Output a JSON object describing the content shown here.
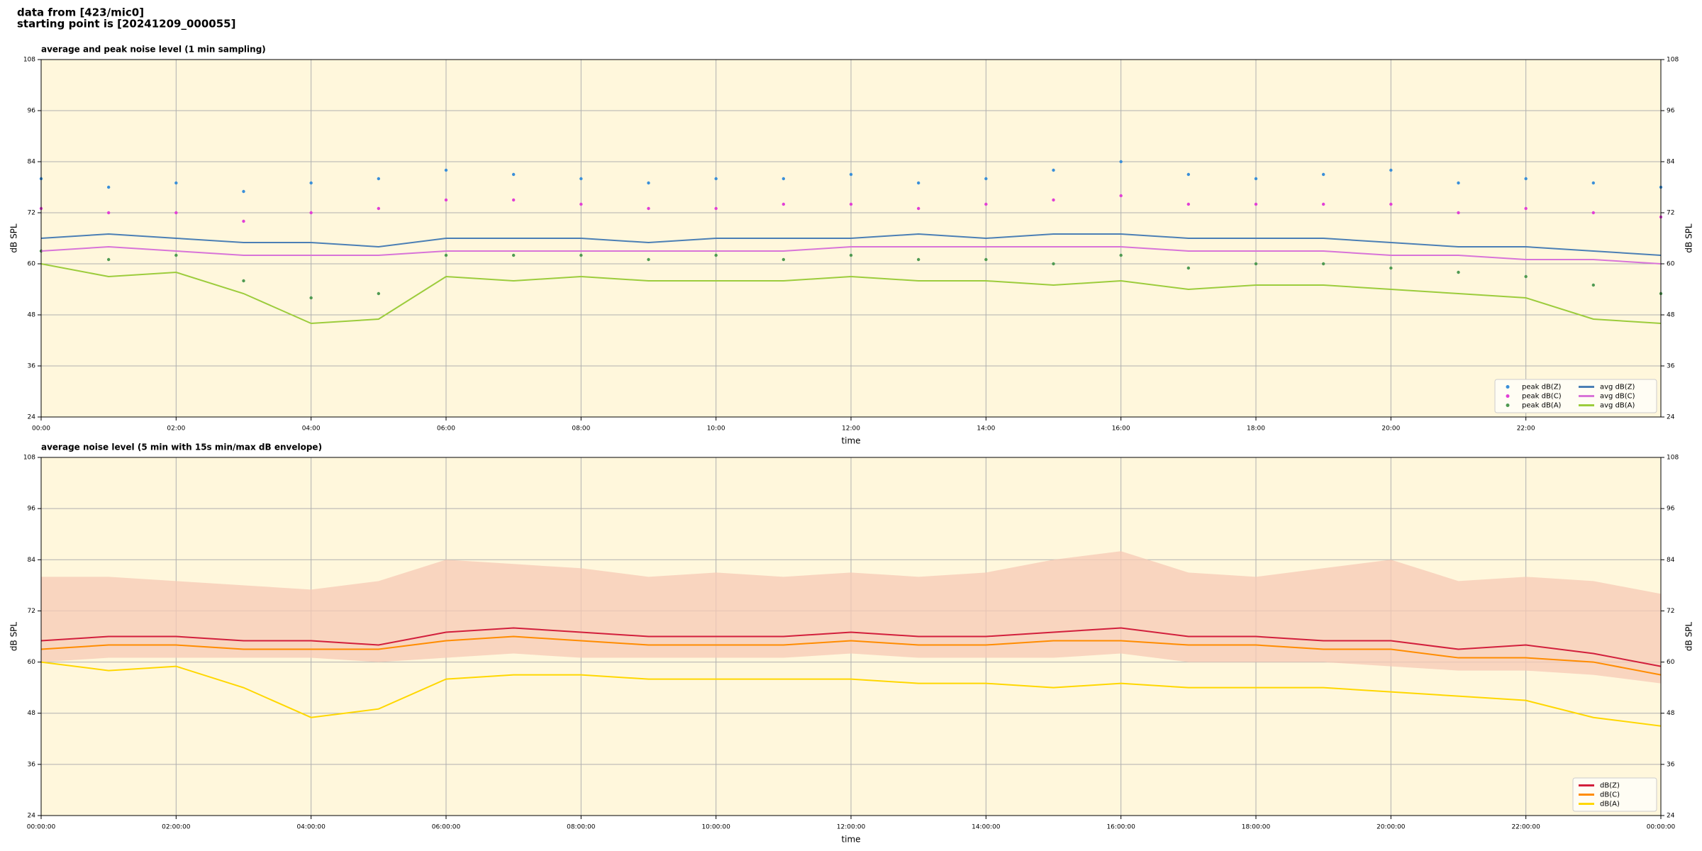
{
  "header": {
    "lines": [
      "data from [423/mic0]",
      "starting point is [20241209_000055]"
    ]
  },
  "chart_data": [
    {
      "type": "line",
      "title": "average and peak noise level (1 min sampling)",
      "xlabel": "time",
      "ylabel": "dB SPL",
      "xlim": [
        0,
        24
      ],
      "ylim": [
        24,
        108
      ],
      "xticks": [
        {
          "value": 0,
          "label": "00:00"
        },
        {
          "value": 2,
          "label": "02:00"
        },
        {
          "value": 4,
          "label": "04:00"
        },
        {
          "value": 6,
          "label": "06:00"
        },
        {
          "value": 8,
          "label": "08:00"
        },
        {
          "value": 10,
          "label": "10:00"
        },
        {
          "value": 12,
          "label": "12:00"
        },
        {
          "value": 14,
          "label": "14:00"
        },
        {
          "value": 16,
          "label": "16:00"
        },
        {
          "value": 18,
          "label": "18:00"
        },
        {
          "value": 20,
          "label": "20:00"
        },
        {
          "value": 22,
          "label": "22:00"
        }
      ],
      "yticks": [
        24,
        36,
        48,
        60,
        72,
        84,
        96,
        108
      ],
      "grid": true,
      "legend": "lower right",
      "legend_columns": 2,
      "x": [
        0,
        1,
        2,
        3,
        4,
        5,
        6,
        7,
        8,
        9,
        10,
        11,
        12,
        13,
        14,
        15,
        16,
        17,
        18,
        19,
        20,
        21,
        22,
        23,
        24
      ],
      "series": [
        {
          "name": "peak dB(Z)",
          "type": "scatter",
          "color": "#3a8fd9",
          "values": [
            80,
            78,
            79,
            77,
            79,
            80,
            82,
            81,
            80,
            79,
            80,
            80,
            81,
            79,
            80,
            82,
            84,
            81,
            80,
            81,
            82,
            79,
            80,
            79,
            78
          ]
        },
        {
          "name": "peak dB(C)",
          "type": "scatter",
          "color": "#e23fd6",
          "values": [
            73,
            72,
            72,
            70,
            72,
            73,
            75,
            75,
            74,
            73,
            73,
            74,
            74,
            73,
            74,
            75,
            76,
            74,
            74,
            74,
            74,
            72,
            73,
            72,
            71
          ]
        },
        {
          "name": "peak dB(A)",
          "type": "scatter",
          "color": "#4f9a52",
          "values": [
            63,
            61,
            62,
            56,
            52,
            53,
            62,
            62,
            62,
            61,
            62,
            61,
            62,
            61,
            61,
            60,
            62,
            59,
            60,
            60,
            59,
            58,
            57,
            55,
            53
          ]
        },
        {
          "name": "avg dB(Z)",
          "type": "line",
          "color": "#4b7fb5",
          "values": [
            66,
            67,
            66,
            65,
            65,
            64,
            66,
            66,
            66,
            65,
            66,
            66,
            66,
            67,
            66,
            67,
            67,
            66,
            66,
            66,
            65,
            64,
            64,
            63,
            62
          ]
        },
        {
          "name": "avg dB(C)",
          "type": "line",
          "color": "#d874d8",
          "values": [
            63,
            64,
            63,
            62,
            62,
            62,
            63,
            63,
            63,
            63,
            63,
            63,
            64,
            64,
            64,
            64,
            64,
            63,
            63,
            63,
            62,
            62,
            61,
            61,
            60
          ]
        },
        {
          "name": "avg dB(A)",
          "type": "line",
          "color": "#9ccc3c",
          "values": [
            60,
            57,
            58,
            53,
            46,
            47,
            57,
            56,
            57,
            56,
            56,
            56,
            57,
            56,
            56,
            55,
            56,
            54,
            55,
            55,
            54,
            53,
            52,
            47,
            46
          ]
        }
      ]
    },
    {
      "type": "line",
      "title": "average noise level (5 min with 15s min/max dB envelope)",
      "xlabel": "time",
      "ylabel": "dB SPL",
      "xlim": [
        0,
        24
      ],
      "ylim": [
        24,
        108
      ],
      "xticks": [
        {
          "value": 0,
          "label": "00:00:00"
        },
        {
          "value": 2,
          "label": "02:00:00"
        },
        {
          "value": 4,
          "label": "04:00:00"
        },
        {
          "value": 6,
          "label": "06:00:00"
        },
        {
          "value": 8,
          "label": "08:00:00"
        },
        {
          "value": 10,
          "label": "10:00:00"
        },
        {
          "value": 12,
          "label": "12:00:00"
        },
        {
          "value": 14,
          "label": "14:00:00"
        },
        {
          "value": 16,
          "label": "16:00:00"
        },
        {
          "value": 18,
          "label": "18:00:00"
        },
        {
          "value": 20,
          "label": "20:00:00"
        },
        {
          "value": 22,
          "label": "22:00:00"
        },
        {
          "value": 24,
          "label": "00:00:00"
        }
      ],
      "yticks": [
        24,
        36,
        48,
        60,
        72,
        84,
        96,
        108
      ],
      "grid": true,
      "legend": "lower right",
      "legend_columns": 1,
      "x": [
        0,
        1,
        2,
        3,
        4,
        5,
        6,
        7,
        8,
        9,
        10,
        11,
        12,
        13,
        14,
        15,
        16,
        17,
        18,
        19,
        20,
        21,
        22,
        23,
        24
      ],
      "envelope": {
        "color": "#f7c9b6",
        "max": [
          80,
          80,
          79,
          78,
          77,
          79,
          84,
          83,
          82,
          80,
          81,
          80,
          81,
          80,
          81,
          84,
          86,
          81,
          80,
          82,
          84,
          79,
          80,
          79,
          76
        ],
        "min": [
          60,
          61,
          61,
          61,
          61,
          60,
          61,
          62,
          61,
          61,
          61,
          61,
          62,
          61,
          61,
          61,
          62,
          60,
          60,
          60,
          59,
          58,
          58,
          57,
          55
        ]
      },
      "series": [
        {
          "name": "dB(Z)",
          "type": "line",
          "color": "#d21f3c",
          "values": [
            65,
            66,
            66,
            65,
            65,
            64,
            67,
            68,
            67,
            66,
            66,
            66,
            67,
            66,
            66,
            67,
            68,
            66,
            66,
            65,
            65,
            63,
            64,
            62,
            59
          ]
        },
        {
          "name": "dB(C)",
          "type": "line",
          "color": "#ff8c00",
          "values": [
            63,
            64,
            64,
            63,
            63,
            63,
            65,
            66,
            65,
            64,
            64,
            64,
            65,
            64,
            64,
            65,
            65,
            64,
            64,
            63,
            63,
            61,
            61,
            60,
            57
          ]
        },
        {
          "name": "dB(A)",
          "type": "line",
          "color": "#ffd700",
          "values": [
            60,
            58,
            59,
            54,
            47,
            49,
            56,
            57,
            57,
            56,
            56,
            56,
            56,
            55,
            55,
            54,
            55,
            54,
            54,
            54,
            53,
            52,
            51,
            47,
            45
          ]
        }
      ]
    }
  ]
}
